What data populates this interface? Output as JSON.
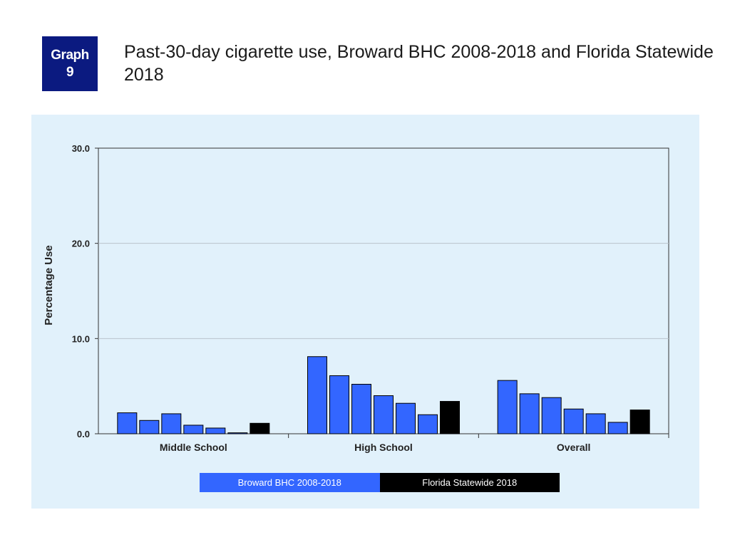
{
  "badge": {
    "line1": "Graph",
    "line2": "9"
  },
  "title": "Past-30-day cigarette use, Broward BHC 2008-2018 and Florida Statewide 2018",
  "colors": {
    "broward": "#3366ff",
    "florida": "#000000",
    "badge": "#0b1a80",
    "panel": "#e1f1fb"
  },
  "chart_data": {
    "type": "bar",
    "title": "Past-30-day cigarette use, Broward BHC 2008-2018 and Florida Statewide 2018",
    "xlabel": "",
    "ylabel": "Percentage Use",
    "ylim": [
      0,
      30
    ],
    "yticks": [
      "0.0",
      "10.0",
      "20.0",
      "30.0"
    ],
    "grid": true,
    "legend_position": "bottom",
    "categories": [
      "Middle School",
      "High School",
      "Overall"
    ],
    "series": [
      {
        "name": "Broward BHC 2008-2018",
        "color": "#3366ff",
        "bars_per_category": 6,
        "values": [
          [
            2.2,
            1.4,
            2.1,
            0.9,
            0.6,
            0.1
          ],
          [
            8.1,
            6.1,
            5.2,
            4.0,
            3.2,
            2.0
          ],
          [
            5.6,
            4.2,
            3.8,
            2.6,
            2.1,
            1.2
          ]
        ]
      },
      {
        "name": "Florida Statewide 2018",
        "color": "#000000",
        "values": [
          1.1,
          3.4,
          2.5
        ]
      }
    ]
  }
}
